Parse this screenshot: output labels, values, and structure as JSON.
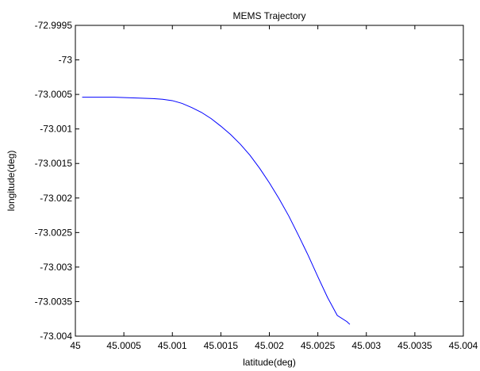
{
  "chart_data": {
    "type": "line",
    "title": "MEMS Trajectory",
    "xlabel": "latitude(deg)",
    "ylabel": "longitude(deg)",
    "xlim": [
      45,
      45.004
    ],
    "ylim": [
      -73.004,
      -72.9995
    ],
    "xticks": [
      "45",
      "45.0005",
      "45.001",
      "45.0015",
      "45.002",
      "45.0025",
      "45.003",
      "45.0035",
      "45.004"
    ],
    "yticks": [
      "-72.9995",
      "-73",
      "-73.0005",
      "-73.001",
      "-73.0015",
      "-73.002",
      "-73.0025",
      "-73.003",
      "-73.0035",
      "-73.004"
    ],
    "grid": false,
    "series": [
      {
        "color": "#0000ff",
        "x": [
          45.00007,
          45.0002,
          45.0004,
          45.0006,
          45.0008,
          45.0009,
          45.001,
          45.0011,
          45.0012,
          45.0013,
          45.0014,
          45.0015,
          45.0016,
          45.0017,
          45.0018,
          45.0019,
          45.002,
          45.0021,
          45.0022,
          45.0023,
          45.0024,
          45.0025,
          45.0026,
          45.0027,
          45.0028,
          45.00283
        ],
        "y": [
          -73.00054,
          -73.00054,
          -73.00054,
          -73.00055,
          -73.00056,
          -73.00057,
          -73.00059,
          -73.00063,
          -73.00069,
          -73.00076,
          -73.00085,
          -73.00096,
          -73.00108,
          -73.00122,
          -73.00138,
          -73.00157,
          -73.00178,
          -73.00201,
          -73.00226,
          -73.00254,
          -73.00283,
          -73.00314,
          -73.00344,
          -73.0037,
          -73.00379,
          -73.00383
        ]
      }
    ]
  }
}
